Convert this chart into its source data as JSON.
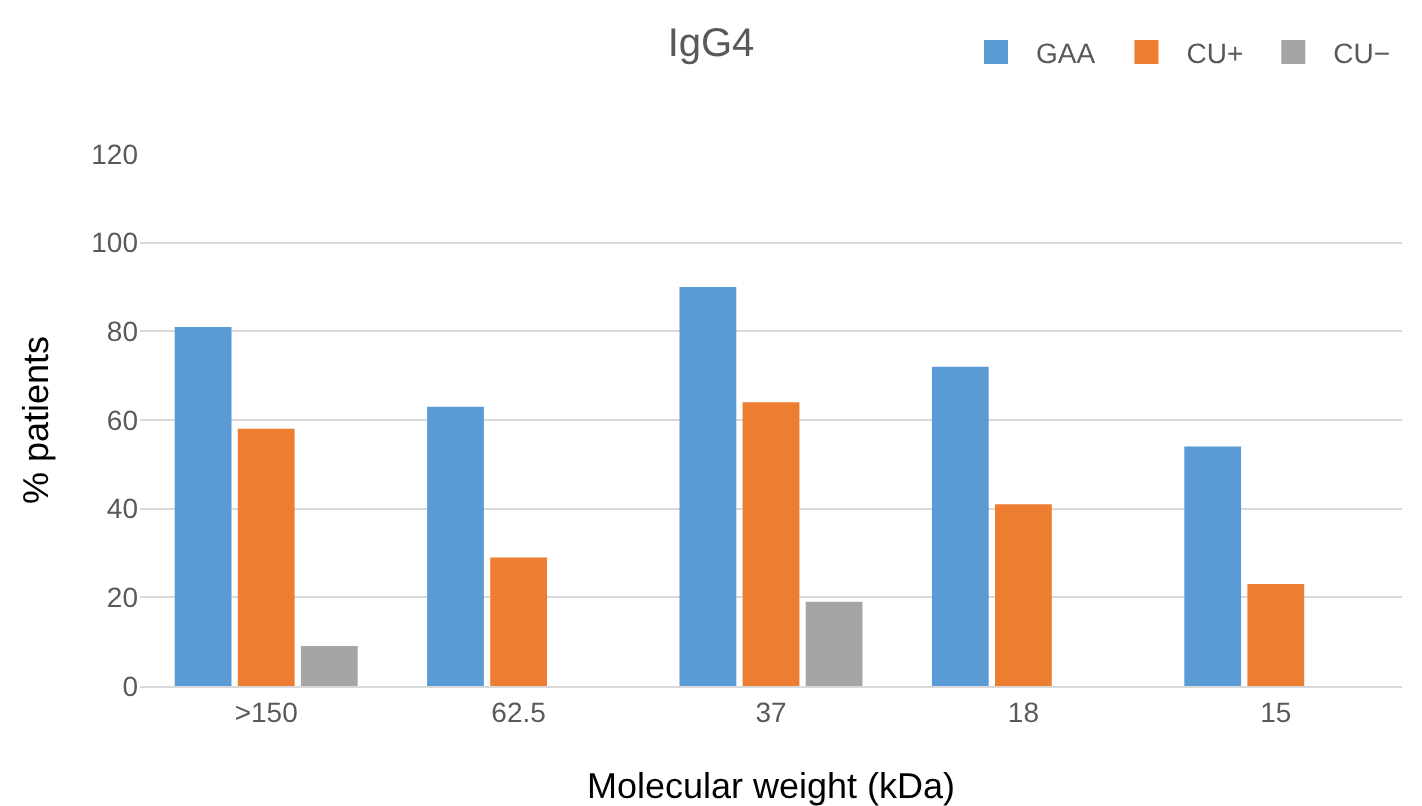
{
  "chart_data": {
    "type": "bar",
    "title": "IgG4",
    "xlabel": "Molecular weight (kDa)",
    "ylabel": "% patients",
    "categories": [
      ">150",
      "62.5",
      "37",
      "18",
      "15"
    ],
    "series": [
      {
        "name": "GAA",
        "color": "#5b9bd5",
        "values": [
          81,
          63,
          90,
          72,
          54
        ]
      },
      {
        "name": "CU+",
        "color": "#ed7d31",
        "values": [
          58,
          29,
          64,
          41,
          23
        ]
      },
      {
        "name": "CU−",
        "color": "#a5a5a5",
        "values": [
          9,
          0,
          19,
          0,
          0
        ]
      }
    ],
    "ylim": [
      0,
      120
    ],
    "yticks": [
      0,
      20,
      40,
      60,
      80,
      100,
      120
    ],
    "grid": "y",
    "legend": "top right"
  }
}
